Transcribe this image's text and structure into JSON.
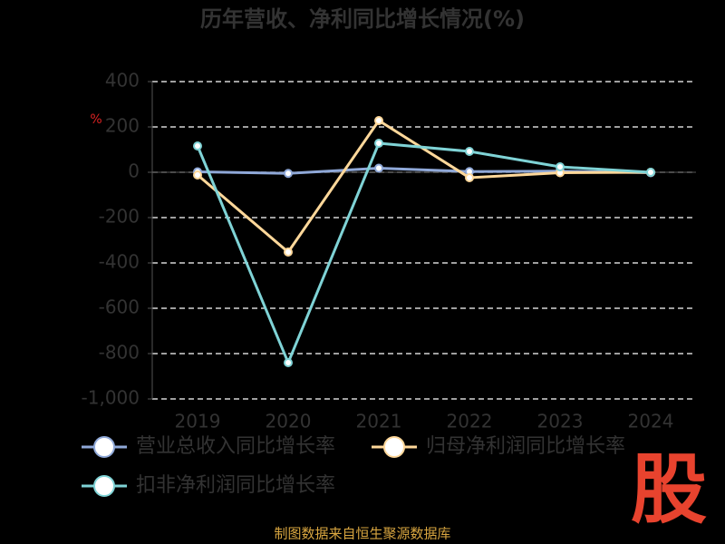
{
  "chart_data": {
    "type": "line",
    "title": "历年营收、净利同比增长情况(%)",
    "unit_mark": "%",
    "categories": [
      "2019",
      "2020",
      "2021",
      "2022",
      "2023",
      "2024"
    ],
    "series": [
      {
        "name": "营业总收入同比增长率",
        "color": "#8fa8d8",
        "values": [
          2,
          -5,
          18,
          3,
          5,
          -2
        ]
      },
      {
        "name": "归母净利润同比增长率",
        "color": "#ffd89a",
        "values": [
          -12,
          -352,
          228,
          -24,
          -2,
          0
        ]
      },
      {
        "name": "扣非净利润同比增长率",
        "color": "#7fd3d6",
        "values": [
          116,
          -840,
          128,
          92,
          24,
          0
        ]
      }
    ],
    "ylim": [
      -1000,
      400
    ],
    "yticks": [
      {
        "value": -1000,
        "label": "-1,000"
      },
      -800,
      -600,
      -400,
      -200,
      0,
      200,
      400
    ],
    "grid": true,
    "legend": "bottom",
    "source": "制图数据来自恒生聚源数据库",
    "logo": "股"
  }
}
